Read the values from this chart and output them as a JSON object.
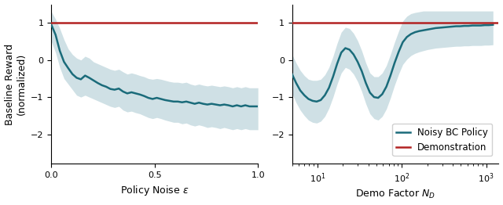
{
  "line_color": "#1a6b7a",
  "fill_color": "#a8c8d0",
  "fill_alpha": 0.55,
  "demo_color": "#b22222",
  "demo_value": 1.0,
  "ylabel": "Baseline Reward\n(normalized)",
  "xlabel1": "Policy Noise $\\epsilon$",
  "xlabel2": "Demo Factor $N_D$",
  "legend_labels": [
    "Noisy BC Policy",
    "Demonstration"
  ],
  "plot1_xlim": [
    0.0,
    1.0
  ],
  "plot1_ylim": [
    -2.8,
    1.5
  ],
  "plot2_xlim_log": [
    5,
    1400
  ],
  "plot2_ylim": [
    -2.8,
    1.5
  ],
  "yticks": [
    -2,
    -1,
    0,
    1
  ],
  "mean1": [
    0.95,
    0.68,
    0.25,
    -0.05,
    -0.22,
    -0.38,
    -0.48,
    -0.52,
    -0.42,
    -0.48,
    -0.55,
    -0.62,
    -0.68,
    -0.72,
    -0.78,
    -0.8,
    -0.77,
    -0.85,
    -0.9,
    -0.87,
    -0.9,
    -0.93,
    -0.97,
    -1.02,
    -1.05,
    -1.02,
    -1.05,
    -1.08,
    -1.1,
    -1.12,
    -1.12,
    -1.14,
    -1.12,
    -1.15,
    -1.18,
    -1.15,
    -1.18,
    -1.2,
    -1.18,
    -1.2,
    -1.22,
    -1.2,
    -1.22,
    -1.25,
    -1.22,
    -1.25,
    -1.22,
    -1.25,
    -1.25,
    -1.25
  ],
  "lower1": [
    0.5,
    0.2,
    -0.2,
    -0.5,
    -0.65,
    -0.8,
    -0.95,
    -1.0,
    -0.95,
    -1.0,
    -1.05,
    -1.1,
    -1.15,
    -1.2,
    -1.25,
    -1.28,
    -1.25,
    -1.35,
    -1.4,
    -1.38,
    -1.42,
    -1.45,
    -1.5,
    -1.55,
    -1.58,
    -1.55,
    -1.58,
    -1.62,
    -1.65,
    -1.68,
    -1.68,
    -1.72,
    -1.7,
    -1.75,
    -1.78,
    -1.75,
    -1.78,
    -1.82,
    -1.8,
    -1.82,
    -1.85,
    -1.82,
    -1.85,
    -1.88,
    -1.85,
    -1.88,
    -1.85,
    -1.88,
    -1.88,
    -1.88
  ],
  "upper1": [
    1.3,
    1.1,
    0.85,
    0.55,
    0.3,
    0.15,
    0.05,
    0.0,
    0.1,
    0.05,
    -0.05,
    -0.1,
    -0.15,
    -0.2,
    -0.25,
    -0.28,
    -0.25,
    -0.32,
    -0.38,
    -0.35,
    -0.38,
    -0.42,
    -0.45,
    -0.5,
    -0.52,
    -0.5,
    -0.52,
    -0.55,
    -0.58,
    -0.6,
    -0.6,
    -0.62,
    -0.6,
    -0.65,
    -0.68,
    -0.65,
    -0.68,
    -0.7,
    -0.68,
    -0.7,
    -0.72,
    -0.7,
    -0.72,
    -0.75,
    -0.72,
    -0.75,
    -0.72,
    -0.75,
    -0.75,
    -0.75
  ],
  "mean2": [
    -0.38,
    -0.62,
    -0.82,
    -0.95,
    -1.05,
    -1.1,
    -1.12,
    -1.08,
    -0.95,
    -0.75,
    -0.45,
    -0.1,
    0.2,
    0.32,
    0.28,
    0.15,
    -0.05,
    -0.3,
    -0.62,
    -0.88,
    -1.0,
    -1.02,
    -0.92,
    -0.72,
    -0.42,
    -0.08,
    0.22,
    0.48,
    0.62,
    0.7,
    0.75,
    0.78,
    0.8,
    0.82,
    0.84,
    0.86,
    0.87,
    0.88,
    0.89,
    0.9,
    0.91,
    0.91,
    0.92,
    0.92,
    0.93,
    0.93,
    0.93,
    0.94,
    0.94,
    0.95
  ],
  "lower2": [
    -0.9,
    -1.15,
    -1.35,
    -1.5,
    -1.62,
    -1.68,
    -1.7,
    -1.65,
    -1.52,
    -1.3,
    -1.0,
    -0.65,
    -0.35,
    -0.2,
    -0.25,
    -0.38,
    -0.58,
    -0.85,
    -1.18,
    -1.45,
    -1.58,
    -1.62,
    -1.52,
    -1.32,
    -1.02,
    -0.68,
    -0.38,
    -0.12,
    0.02,
    0.12,
    0.18,
    0.22,
    0.25,
    0.28,
    0.3,
    0.32,
    0.33,
    0.34,
    0.35,
    0.36,
    0.37,
    0.37,
    0.38,
    0.38,
    0.39,
    0.39,
    0.39,
    0.4,
    0.4,
    0.41
  ],
  "upper2": [
    0.15,
    -0.08,
    -0.28,
    -0.42,
    -0.52,
    -0.55,
    -0.55,
    -0.52,
    -0.4,
    -0.2,
    0.1,
    0.45,
    0.75,
    0.88,
    0.85,
    0.72,
    0.52,
    0.25,
    -0.08,
    -0.35,
    -0.45,
    -0.45,
    -0.35,
    -0.15,
    0.15,
    0.48,
    0.78,
    1.05,
    1.18,
    1.25,
    1.28,
    1.3,
    1.32,
    1.32,
    1.32,
    1.32,
    1.32,
    1.32,
    1.32,
    1.32,
    1.32,
    1.32,
    1.32,
    1.32,
    1.32,
    1.32,
    1.32,
    1.32,
    1.32,
    1.32
  ]
}
